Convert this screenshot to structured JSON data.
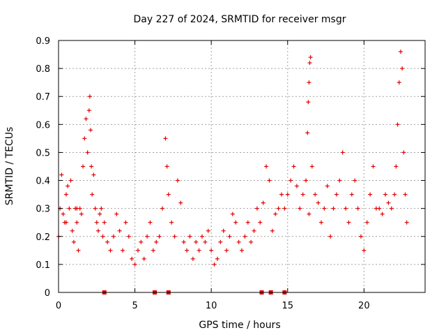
{
  "chart_data": {
    "type": "scatter",
    "title": "Day 227 of 2024, SRMTID for receiver msgr",
    "xlabel": "GPS time / hours",
    "ylabel": "SRMTID / TECUs",
    "xlim": [
      0,
      24
    ],
    "ylim": [
      0,
      0.9
    ],
    "xticks": [
      0,
      5,
      10,
      15,
      20
    ],
    "xtick_labels": [
      "0",
      "5",
      "10",
      "15",
      "20"
    ],
    "yticks": [
      0,
      0.1,
      0.2,
      0.3,
      0.4,
      0.5,
      0.6,
      0.7,
      0.8,
      0.9
    ],
    "ytick_labels": [
      "0",
      "0.1",
      "0.2",
      "0.3",
      "0.4",
      "0.5",
      "0.6",
      "0.7",
      "0.8",
      "0.9"
    ],
    "grid": true,
    "marker": "plus",
    "color": "#e00000",
    "series": [
      {
        "name": "SRMTID",
        "marker": "plus",
        "x": [
          0.0,
          0.1,
          0.2,
          0.3,
          0.4,
          0.5,
          0.6,
          0.7,
          0.8,
          0.9,
          1.0,
          1.1,
          1.2,
          1.3,
          1.4,
          1.5,
          1.6,
          1.7,
          1.8,
          1.9,
          2.0,
          2.05,
          2.1,
          2.15,
          2.2,
          2.3,
          2.4,
          2.5,
          2.6,
          2.7,
          2.8,
          2.9,
          3.0,
          3.2,
          3.4,
          3.6,
          3.8,
          4.0,
          4.2,
          4.4,
          4.6,
          4.8,
          5.0,
          5.2,
          5.4,
          5.6,
          5.8,
          6.0,
          6.2,
          6.4,
          6.6,
          6.8,
          7.0,
          7.1,
          7.2,
          7.4,
          7.6,
          7.8,
          8.0,
          8.2,
          8.4,
          8.6,
          8.8,
          9.0,
          9.2,
          9.4,
          9.6,
          9.8,
          10.0,
          10.2,
          10.4,
          10.6,
          10.8,
          11.0,
          11.2,
          11.4,
          11.6,
          11.8,
          12.0,
          12.2,
          12.4,
          12.6,
          12.8,
          13.0,
          13.2,
          13.4,
          13.6,
          13.8,
          14.0,
          14.2,
          14.4,
          14.6,
          14.8,
          15.0,
          15.2,
          15.4,
          15.6,
          15.8,
          16.0,
          16.2,
          16.4,
          16.6,
          16.8,
          17.0,
          17.2,
          17.4,
          17.6,
          17.8,
          18.0,
          18.2,
          18.4,
          18.6,
          18.8,
          19.0,
          19.2,
          19.4,
          19.6,
          19.8,
          20.0,
          20.2,
          20.4,
          20.6,
          20.8,
          21.0,
          21.2,
          21.4,
          21.6,
          21.8,
          22.0,
          22.1,
          22.2,
          22.3,
          22.4,
          22.5,
          22.6,
          22.7,
          22.8,
          16.3,
          16.35,
          16.4,
          16.45,
          16.5,
          0.5,
          1.2,
          3.0,
          6.3,
          7.2,
          13.3,
          13.9,
          14.8
        ],
        "y": [
          0.2,
          0.3,
          0.42,
          0.28,
          0.25,
          0.35,
          0.38,
          0.3,
          0.4,
          0.22,
          0.18,
          0.3,
          0.25,
          0.15,
          0.3,
          0.28,
          0.45,
          0.55,
          0.62,
          0.5,
          0.65,
          0.7,
          0.58,
          0.45,
          0.35,
          0.42,
          0.3,
          0.25,
          0.22,
          0.28,
          0.3,
          0.2,
          0.25,
          0.18,
          0.15,
          0.2,
          0.28,
          0.22,
          0.15,
          0.25,
          0.2,
          0.12,
          0.1,
          0.15,
          0.18,
          0.12,
          0.2,
          0.25,
          0.15,
          0.18,
          0.2,
          0.3,
          0.55,
          0.45,
          0.35,
          0.25,
          0.2,
          0.4,
          0.32,
          0.18,
          0.15,
          0.2,
          0.12,
          0.18,
          0.15,
          0.2,
          0.18,
          0.22,
          0.15,
          0.1,
          0.12,
          0.18,
          0.22,
          0.15,
          0.2,
          0.28,
          0.25,
          0.18,
          0.15,
          0.2,
          0.25,
          0.18,
          0.22,
          0.3,
          0.25,
          0.32,
          0.45,
          0.4,
          0.22,
          0.28,
          0.3,
          0.35,
          0.3,
          0.35,
          0.4,
          0.45,
          0.38,
          0.3,
          0.35,
          0.4,
          0.28,
          0.45,
          0.35,
          0.32,
          0.25,
          0.3,
          0.38,
          0.2,
          0.3,
          0.35,
          0.4,
          0.5,
          0.3,
          0.25,
          0.35,
          0.4,
          0.3,
          0.2,
          0.15,
          0.25,
          0.35,
          0.45,
          0.3,
          0.3,
          0.28,
          0.35,
          0.32,
          0.3,
          0.35,
          0.45,
          0.6,
          0.75,
          0.86,
          0.8,
          0.5,
          0.35,
          0.25,
          0.57,
          0.68,
          0.75,
          0.82,
          0.84,
          0.25,
          0.3,
          0.0,
          0.0,
          0.0,
          0.0,
          0.0,
          0.0
        ]
      }
    ]
  }
}
